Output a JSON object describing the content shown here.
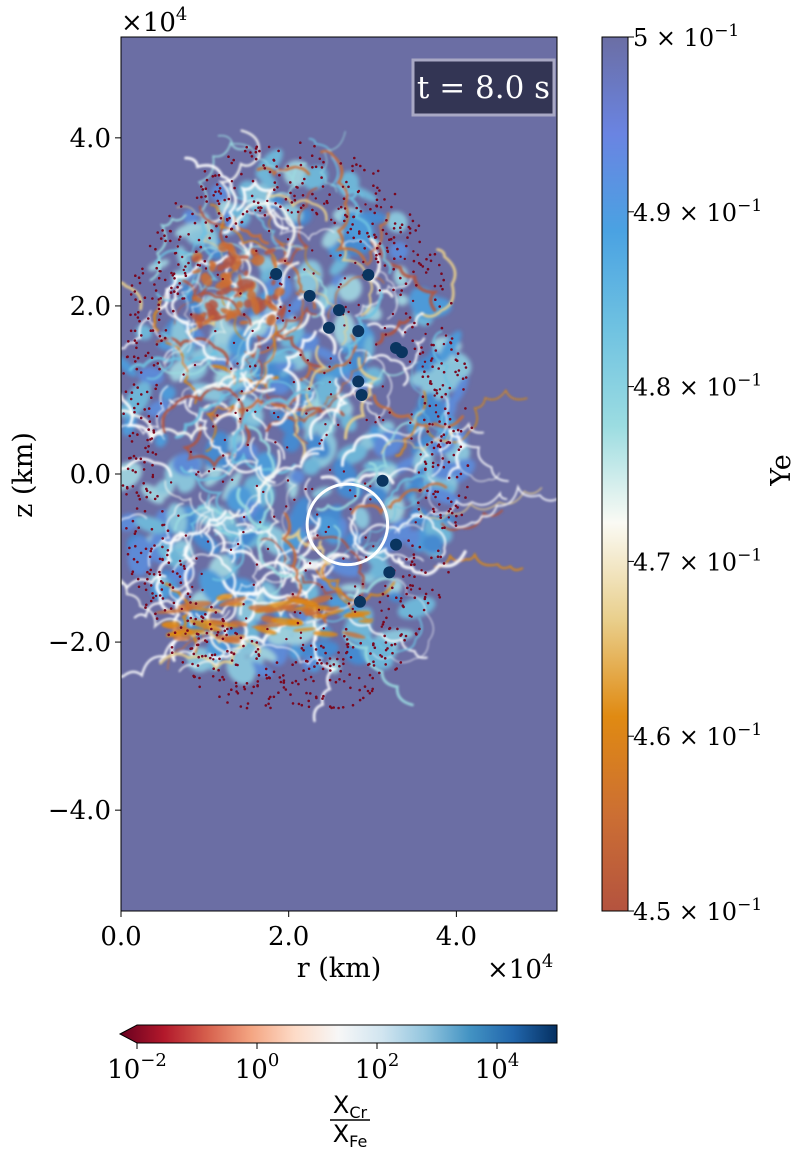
{
  "chart_data": {
    "type": "heatmap",
    "title": "",
    "annotation": "t = 8.0 s",
    "xlabel": "r (km)",
    "ylabel": "z (km)",
    "x_multiplier": "×10",
    "x_multiplier_exp": "4",
    "y_multiplier": "×10",
    "y_multiplier_exp": "4",
    "xlim": [
      0.0,
      5.2
    ],
    "ylim": [
      -5.2,
      5.2
    ],
    "x_ticks": [
      {
        "value": 0.0,
        "label": "0.0"
      },
      {
        "value": 2.0,
        "label": "2.0"
      },
      {
        "value": 4.0,
        "label": "4.0"
      }
    ],
    "y_ticks": [
      {
        "value": 4.0,
        "label": "4.0"
      },
      {
        "value": 2.0,
        "label": "2.0"
      },
      {
        "value": 0.0,
        "label": "0.0"
      },
      {
        "value": -2.0,
        "label": "−2.0"
      },
      {
        "value": -4.0,
        "label": "−4.0"
      }
    ],
    "ye_colorbar": {
      "label": "Ye",
      "range": [
        0.45,
        0.5
      ],
      "ticks": [
        {
          "value": 0.5,
          "mantissa": "5",
          "exp": "−1"
        },
        {
          "value": 0.49,
          "mantissa": "4.9",
          "exp": "−1"
        },
        {
          "value": 0.48,
          "mantissa": "4.8",
          "exp": "−1"
        },
        {
          "value": 0.47,
          "mantissa": "4.7",
          "exp": "−1"
        },
        {
          "value": 0.46,
          "mantissa": "4.6",
          "exp": "−1"
        },
        {
          "value": 0.45,
          "mantissa": "4.5",
          "exp": "−1"
        }
      ]
    },
    "ratio_colorbar": {
      "label_num": "X",
      "label_num_sub": "Cr",
      "label_den": "X",
      "label_den_sub": "Fe",
      "scale": "log",
      "range_exp": [
        -2,
        5
      ],
      "ticks": [
        {
          "exp_value": -2,
          "base": "10",
          "exp": "−2"
        },
        {
          "exp_value": 0,
          "base": "10",
          "exp": "0"
        },
        {
          "exp_value": 2,
          "base": "10",
          "exp": "2"
        },
        {
          "exp_value": 4,
          "base": "10",
          "exp": "4"
        }
      ]
    },
    "highlight_circle": {
      "r": 2.7,
      "z": -0.6,
      "radius": 0.48
    },
    "large_markers": [
      {
        "r": 1.85,
        "z": 2.38
      },
      {
        "r": 2.25,
        "z": 2.12
      },
      {
        "r": 2.6,
        "z": 1.95
      },
      {
        "r": 2.48,
        "z": 1.74
      },
      {
        "r": 2.95,
        "z": 2.37
      },
      {
        "r": 2.83,
        "z": 1.7
      },
      {
        "r": 3.28,
        "z": 1.5
      },
      {
        "r": 3.35,
        "z": 1.45
      },
      {
        "r": 2.83,
        "z": 1.1
      },
      {
        "r": 2.87,
        "z": 0.94
      },
      {
        "r": 3.12,
        "z": -0.08
      },
      {
        "r": 3.28,
        "z": -0.84
      },
      {
        "r": 3.2,
        "z": -1.17
      },
      {
        "r": 2.85,
        "z": -1.52
      }
    ],
    "colors": {
      "background": "#6b6ea4",
      "ye_colormap": [
        "#b4533f",
        "#cc6f33",
        "#e08a12",
        "#e9cf8c",
        "#fafaf4",
        "#9bdce1",
        "#6fc2e1",
        "#4aa2e2",
        "#6a84e2",
        "#6b6ea4"
      ],
      "ratio_colormap": [
        "#67001f",
        "#b2182b",
        "#d6604d",
        "#f4a582",
        "#fddbc7",
        "#f7f7f7",
        "#d1e5f0",
        "#92c5de",
        "#4393c3",
        "#2166ac",
        "#053061"
      ],
      "marker_dark": "#0a3560",
      "marker_small": "#7a0820",
      "time_box": "#333554",
      "time_box_border": "#a8a8c4"
    }
  }
}
